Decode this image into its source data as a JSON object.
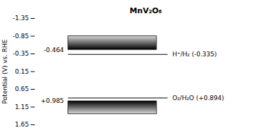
{
  "chart_data": {
    "type": "band_diagram",
    "title": "MnV₂O₆",
    "ylabel": "Potential (V) vs. RHE",
    "ylim": [
      1.65,
      -1.35
    ],
    "yticks": [
      -1.35,
      -0.85,
      -0.35,
      0.15,
      0.65,
      1.15,
      1.65
    ],
    "grid": false,
    "tick_labels": "y",
    "data_labels": true,
    "bands": [
      {
        "from": -0.85,
        "to": -0.464,
        "label": "-0.464"
      },
      {
        "from": 1.35,
        "to": 0.985,
        "label": "+0.985"
      }
    ],
    "lines": [
      {
        "value": -0.335,
        "label": "H⁺/H₂ (-0.335)",
        "line_style": "dashed"
      },
      {
        "value": 0.894,
        "label": "O₂/H₂O (+0.894)",
        "line_style": "dashed"
      }
    ]
  }
}
